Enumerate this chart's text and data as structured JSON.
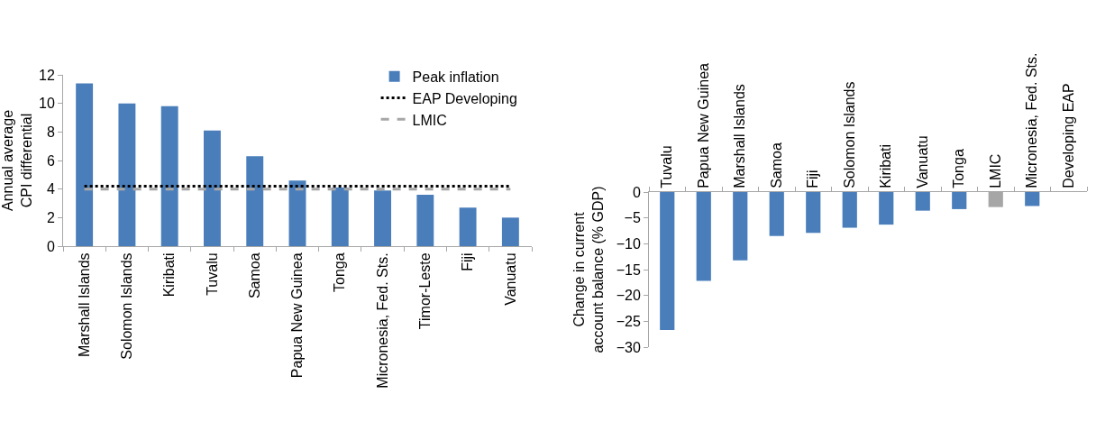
{
  "chart_data": [
    {
      "type": "bar",
      "ylabel": "Annual average CPI differential",
      "categories": [
        "Marshall Islands",
        "Solomon Islands",
        "Kiribati",
        "Tuvalu",
        "Samoa",
        "Papua New Guinea",
        "Tonga",
        "Micronesia, Fed. Sts.",
        "Timor-Leste",
        "Fiji",
        "Vanuatu"
      ],
      "series": [
        {
          "name": "Peak inflation",
          "color": "#4a7ebb",
          "values": [
            11.4,
            10.0,
            9.8,
            8.1,
            6.3,
            4.6,
            4.1,
            3.9,
            3.6,
            2.7,
            2.0
          ]
        },
        {
          "name": "EAP Developing",
          "type": "line",
          "line_style": "dotted",
          "color": "#000000",
          "values": [
            4.2,
            4.2,
            4.2,
            4.2,
            4.2,
            4.2,
            4.2,
            4.2,
            4.2,
            4.2,
            4.2
          ]
        },
        {
          "name": "LMIC",
          "type": "line",
          "line_style": "dashed",
          "color": "#a6a6a6",
          "values": [
            4.0,
            4.0,
            4.0,
            4.0,
            4.0,
            4.0,
            4.0,
            4.0,
            4.0,
            4.0,
            4.0
          ]
        }
      ],
      "ylim": [
        0,
        12
      ],
      "yticks": [
        0,
        2,
        4,
        6,
        8,
        10,
        12
      ],
      "grid": false,
      "legend": "top right"
    },
    {
      "type": "bar",
      "ylabel": "Change in current account balance (% GDP)",
      "categories": [
        "Tuvalu",
        "Papua New Guinea",
        "Marshall Islands",
        "Samoa",
        "Fiji",
        "Solomon Islands",
        "Kiribati",
        "Vanuatu",
        "Tonga",
        "LMIC",
        "Micronesia, Fed. Sts.",
        "Developing EAP"
      ],
      "series": [
        {
          "colors": [
            "#4a7ebb",
            "#4a7ebb",
            "#4a7ebb",
            "#4a7ebb",
            "#4a7ebb",
            "#4a7ebb",
            "#4a7ebb",
            "#4a7ebb",
            "#4a7ebb",
            "#a6a6a6",
            "#4a7ebb",
            "#4a7ebb"
          ],
          "values": [
            -26.7,
            -17.2,
            -13.2,
            -8.5,
            -7.9,
            -6.9,
            -6.3,
            -3.6,
            -3.3,
            -2.9,
            -2.7,
            null
          ]
        }
      ],
      "ylim": [
        -30,
        0
      ],
      "yticks": [
        {
          "value": -30,
          "label": "−30"
        },
        {
          "value": -25,
          "label": "−25"
        },
        {
          "value": -20,
          "label": "−20"
        },
        {
          "value": -15,
          "label": "−15"
        },
        {
          "value": -10,
          "label": "−10"
        },
        {
          "value": -5,
          "label": "−5"
        },
        0
      ],
      "grid": false,
      "legend": false
    }
  ]
}
